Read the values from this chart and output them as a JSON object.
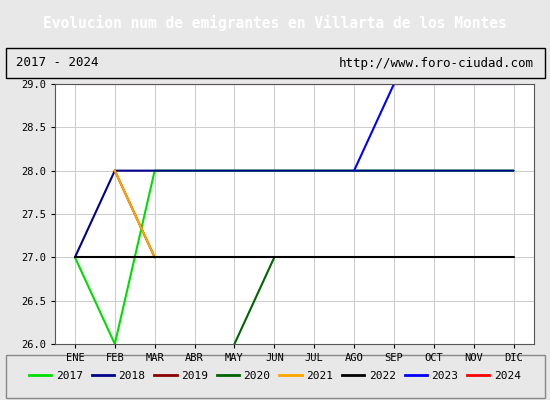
{
  "title": "Evolucion num de emigrantes en Villarta de los Montes",
  "title_bgcolor": "#4a7fc1",
  "title_fgcolor": "#ffffff",
  "subtitle_left": "2017 - 2024",
  "subtitle_right": "http://www.foro-ciudad.com",
  "xlabel_months": [
    "ENE",
    "FEB",
    "MAR",
    "ABR",
    "MAY",
    "JUN",
    "JUL",
    "AGO",
    "SEP",
    "OCT",
    "NOV",
    "DIC"
  ],
  "ylim": [
    26.0,
    29.0
  ],
  "yticks": [
    26.0,
    26.5,
    27.0,
    27.5,
    28.0,
    28.5,
    29.0
  ],
  "bg_color": "#e8e8e8",
  "plot_bg_color": "#e8e8e8",
  "inner_bg_color": "#ffffff",
  "grid_color": "#cccccc",
  "series": [
    {
      "label": "2017",
      "color": "#00dd00",
      "data": [
        [
          1,
          27
        ],
        [
          2,
          26
        ],
        [
          3,
          28
        ],
        [
          12,
          28
        ]
      ]
    },
    {
      "label": "2018",
      "color": "#00008b",
      "data": [
        [
          1,
          27
        ],
        [
          2,
          28
        ],
        [
          12,
          28
        ]
      ]
    },
    {
      "label": "2019",
      "color": "#8b0000",
      "data": [
        [
          2,
          28
        ],
        [
          3,
          27
        ]
      ]
    },
    {
      "label": "2020",
      "color": "#006400",
      "data": [
        [
          5,
          26
        ],
        [
          6,
          27
        ]
      ]
    },
    {
      "label": "2021",
      "color": "#ffa500",
      "data": [
        [
          2,
          28
        ],
        [
          3,
          27
        ]
      ]
    },
    {
      "label": "2022",
      "color": "#000000",
      "data": [
        [
          1,
          27
        ],
        [
          12,
          27
        ]
      ]
    },
    {
      "label": "2023",
      "color": "#0000ff",
      "data": [
        [
          8,
          28
        ],
        [
          9,
          29
        ],
        [
          12,
          29
        ]
      ]
    },
    {
      "label": "2024",
      "color": "#ff0000",
      "data": [
        [
          1,
          29
        ],
        [
          12,
          29
        ]
      ]
    }
  ],
  "legend_colors": [
    "#00dd00",
    "#00008b",
    "#8b0000",
    "#006400",
    "#ffa500",
    "#000000",
    "#0000ff",
    "#ff0000"
  ],
  "legend_labels": [
    "2017",
    "2018",
    "2019",
    "2020",
    "2021",
    "2022",
    "2023",
    "2024"
  ]
}
